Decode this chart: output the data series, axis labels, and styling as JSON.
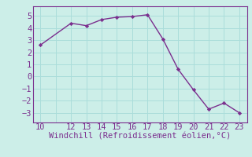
{
  "x": [
    10,
    12,
    13,
    14,
    15,
    16,
    17,
    18,
    19,
    20,
    21,
    22,
    23
  ],
  "y": [
    2.6,
    4.4,
    4.2,
    4.7,
    4.9,
    4.95,
    5.1,
    3.1,
    0.6,
    -1.1,
    -2.7,
    -2.2,
    -3.0
  ],
  "line_color": "#7b2f8e",
  "marker_color": "#7b2f8e",
  "bg_color": "#cceee8",
  "grid_color": "#aaddda",
  "xlabel": "Windchill (Refroidissement éolien,°C)",
  "xlabel_fontsize": 7.5,
  "xlim": [
    9.5,
    23.5
  ],
  "ylim": [
    -3.8,
    5.8
  ],
  "xticks": [
    10,
    11,
    12,
    13,
    14,
    15,
    16,
    17,
    18,
    19,
    20,
    21,
    22,
    23
  ],
  "xtick_labels": [
    "10",
    "",
    "12",
    "13",
    "14",
    "15",
    "16",
    "17",
    "18",
    "19",
    "20",
    "21",
    "22",
    "23"
  ],
  "yticks": [
    -3,
    -2,
    -1,
    0,
    1,
    2,
    3,
    4,
    5
  ],
  "tick_color": "#7b2f8e",
  "tick_fontsize": 7.5,
  "axis_color": "#7b2f8e",
  "spine_color": "#7b2f8e"
}
